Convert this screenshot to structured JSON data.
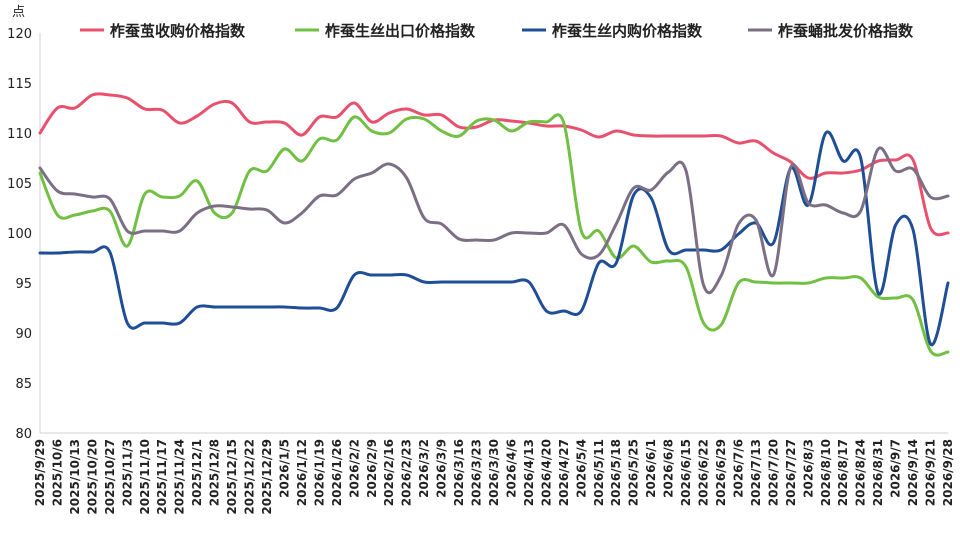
{
  "chart_data": {
    "type": "line",
    "y_unit": "点",
    "ylim": [
      80,
      120
    ],
    "yticks": [
      80,
      85,
      90,
      95,
      100,
      105,
      110,
      115,
      120
    ],
    "grid": false,
    "legend_position": "top",
    "x": [
      "2025/9/29",
      "2025/10/6",
      "2025/10/13",
      "2025/10/20",
      "2025/10/27",
      "2025/11/3",
      "2025/11/10",
      "2025/11/17",
      "2025/11/24",
      "2025/12/1",
      "2025/12/8",
      "2025/12/15",
      "2025/12/22",
      "2025/12/29",
      "2026/1/5",
      "2026/1/12",
      "2026/1/19",
      "2026/1/26",
      "2026/2/2",
      "2026/2/9",
      "2026/2/16",
      "2026/2/23",
      "2026/3/2",
      "2026/3/9",
      "2026/3/16",
      "2026/3/23",
      "2026/3/30",
      "2026/4/6",
      "2026/4/13",
      "2026/4/20",
      "2026/4/27",
      "2026/5/4",
      "2026/5/11",
      "2026/5/18",
      "2026/5/25",
      "2026/6/1",
      "2026/6/8",
      "2026/6/15",
      "2026/6/22",
      "2026/6/29",
      "2026/7/6",
      "2026/7/13",
      "2026/7/20",
      "2026/7/27",
      "2026/8/3",
      "2026/8/10",
      "2026/8/17",
      "2026/8/24",
      "2026/8/31",
      "2026/9/7",
      "2026/9/14",
      "2026/9/21",
      "2026/9/28"
    ],
    "series": [
      {
        "name": "柞蚕茧收购价格指数",
        "color": "#e8506e",
        "values": [
          110.0,
          112.5,
          112.5,
          113.8,
          113.8,
          113.5,
          112.4,
          112.3,
          111.0,
          111.7,
          112.9,
          113.0,
          111.1,
          111.1,
          111.0,
          109.8,
          111.6,
          111.6,
          113.0,
          111.1,
          112.0,
          112.4,
          111.8,
          111.8,
          110.6,
          110.6,
          111.3,
          111.2,
          111.0,
          110.7,
          110.7,
          110.3,
          109.6,
          110.2,
          109.8,
          109.7,
          109.7,
          109.7,
          109.7,
          109.7,
          109.0,
          109.2,
          108.0,
          107.1,
          105.5,
          106.0,
          106.0,
          106.3,
          107.2,
          107.3,
          107.3,
          100.5,
          100.0
        ]
      },
      {
        "name": "柞蚕生丝出口价格指数",
        "color": "#72c043",
        "values": [
          106.0,
          101.8,
          101.8,
          102.2,
          102.2,
          98.7,
          103.9,
          103.6,
          103.7,
          105.2,
          102.0,
          102.0,
          106.2,
          106.2,
          108.4,
          107.2,
          109.4,
          109.3,
          111.6,
          110.2,
          110.0,
          111.4,
          111.4,
          110.2,
          109.7,
          111.2,
          111.3,
          110.2,
          111.1,
          111.1,
          111.0,
          100.2,
          100.2,
          97.5,
          98.7,
          97.1,
          97.2,
          96.6,
          91.0,
          90.8,
          95.0,
          95.1,
          95.0,
          95.0,
          95.0,
          95.5,
          95.5,
          95.5,
          93.6,
          93.5,
          93.3,
          88.2,
          88.1
        ]
      },
      {
        "name": "柞蚕生丝内购价格指数",
        "color": "#1f4e97",
        "values": [
          98.0,
          98.0,
          98.1,
          98.1,
          98.1,
          91.0,
          91.0,
          91.0,
          91.0,
          92.6,
          92.6,
          92.6,
          92.6,
          92.6,
          92.6,
          92.5,
          92.5,
          92.5,
          95.8,
          95.8,
          95.8,
          95.8,
          95.1,
          95.1,
          95.1,
          95.1,
          95.1,
          95.1,
          95.1,
          92.2,
          92.2,
          92.2,
          97.0,
          97.0,
          103.8,
          103.5,
          98.3,
          98.3,
          98.3,
          98.3,
          99.9,
          101.0,
          99.0,
          106.5,
          102.8,
          110.0,
          107.2,
          107.5,
          94.0,
          100.8,
          100.3,
          88.9,
          95.0
        ]
      },
      {
        "name": "柞蚕蛹批发价格指数",
        "color": "#7b6f86",
        "values": [
          106.5,
          104.2,
          103.9,
          103.6,
          103.4,
          100.2,
          100.2,
          100.2,
          100.2,
          102.0,
          102.7,
          102.6,
          102.4,
          102.3,
          101.0,
          102.0,
          103.7,
          103.8,
          105.4,
          106.0,
          106.9,
          105.5,
          101.5,
          100.9,
          99.4,
          99.3,
          99.3,
          100.0,
          100.0,
          100.0,
          100.8,
          97.9,
          97.8,
          100.9,
          104.5,
          104.3,
          106.1,
          106.2,
          94.8,
          95.7,
          100.9,
          101.3,
          95.8,
          106.6,
          103.0,
          102.8,
          102.0,
          102.2,
          108.4,
          106.2,
          106.4,
          103.6,
          103.7
        ]
      }
    ]
  }
}
